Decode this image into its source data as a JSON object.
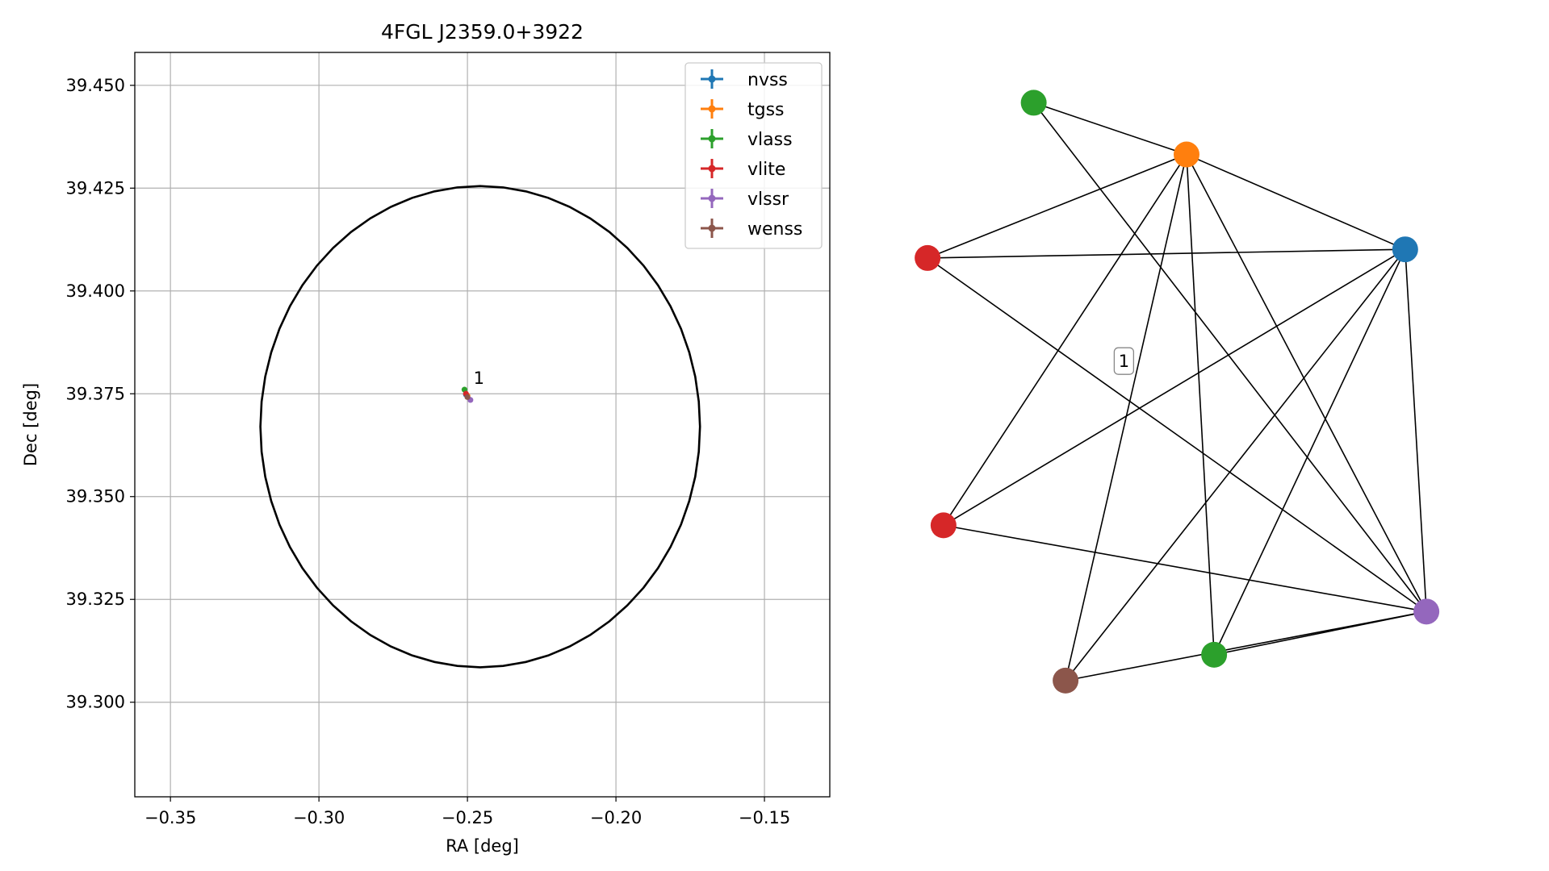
{
  "chart_data": [
    {
      "type": "scatter",
      "title": "4FGL J2359.0+3922",
      "xlabel": "RA [deg]",
      "ylabel": "Dec [deg]",
      "xlim": [
        -0.362,
        -0.128
      ],
      "ylim": [
        39.277,
        39.458
      ],
      "xticks": [
        -0.35,
        -0.3,
        -0.25,
        -0.2,
        -0.15
      ],
      "xtick_labels": [
        "−0.35",
        "−0.30",
        "−0.25",
        "−0.20",
        "−0.15"
      ],
      "yticks": [
        39.3,
        39.325,
        39.35,
        39.375,
        39.4,
        39.425,
        39.45
      ],
      "ytick_labels": [
        "39.300",
        "39.325",
        "39.350",
        "39.375",
        "39.400",
        "39.425",
        "39.450"
      ],
      "grid": true,
      "legend_position": "upper-right",
      "ellipse": {
        "center_x": -0.2457,
        "center_y": 39.367,
        "width_ra": 0.148,
        "height_dec": 0.117,
        "angle_deg": 0,
        "color": "#000000"
      },
      "series": [
        {
          "name": "nvss",
          "color": "#1f77b4",
          "x": [
            -0.2505
          ],
          "y": [
            39.3748
          ]
        },
        {
          "name": "tgss",
          "color": "#ff7f0e",
          "x": [
            -0.25
          ],
          "y": [
            39.3745
          ]
        },
        {
          "name": "vlass",
          "color": "#2ca02c",
          "x": [
            -0.251
          ],
          "y": [
            39.376
          ]
        },
        {
          "name": "vlite",
          "color": "#d62728",
          "x": [
            -0.2505
          ],
          "y": [
            39.375
          ]
        },
        {
          "name": "vlssr",
          "color": "#9467bd",
          "x": [
            -0.249
          ],
          "y": [
            39.3735
          ]
        },
        {
          "name": "wenss",
          "color": "#8c564b",
          "x": [
            -0.25
          ],
          "y": [
            39.3742
          ]
        }
      ],
      "annotations": [
        {
          "text": "1",
          "x": -0.2485,
          "y": 39.377
        }
      ]
    },
    {
      "type": "network",
      "nodes": [
        {
          "id": "vlass_a",
          "color": "#2ca02c",
          "x": 0.2037,
          "y": 0.9722
        },
        {
          "id": "tgss",
          "color": "#ff7f0e",
          "x": 0.4704,
          "y": 0.8889
        },
        {
          "id": "vlite_a",
          "color": "#d62728",
          "x": 0.0185,
          "y": 0.7222
        },
        {
          "id": "nvss",
          "color": "#1f77b4",
          "x": 0.8519,
          "y": 0.7361
        },
        {
          "id": "vlite_b",
          "color": "#d62728",
          "x": 0.0463,
          "y": 0.2917
        },
        {
          "id": "vlssr",
          "color": "#9467bd",
          "x": 0.8889,
          "y": 0.1528
        },
        {
          "id": "vlass_b",
          "color": "#2ca02c",
          "x": 0.5185,
          "y": 0.0833
        },
        {
          "id": "wenss",
          "color": "#8c564b",
          "x": 0.2593,
          "y": 0.0417
        }
      ],
      "edges": [
        [
          "vlass_a",
          "tgss"
        ],
        [
          "vlass_a",
          "vlssr"
        ],
        [
          "tgss",
          "vlite_a"
        ],
        [
          "tgss",
          "nvss"
        ],
        [
          "tgss",
          "vlite_b"
        ],
        [
          "tgss",
          "vlssr"
        ],
        [
          "tgss",
          "vlass_b"
        ],
        [
          "tgss",
          "wenss"
        ],
        [
          "vlite_a",
          "nvss"
        ],
        [
          "vlite_a",
          "vlssr"
        ],
        [
          "nvss",
          "vlite_b"
        ],
        [
          "nvss",
          "vlssr"
        ],
        [
          "nvss",
          "vlass_b"
        ],
        [
          "nvss",
          "wenss"
        ],
        [
          "vlite_b",
          "vlssr"
        ],
        [
          "vlssr",
          "vlass_b"
        ],
        [
          "vlssr",
          "wenss"
        ]
      ],
      "labels": [
        {
          "text": "1",
          "x": 0.3611,
          "y": 0.5556
        }
      ]
    }
  ]
}
